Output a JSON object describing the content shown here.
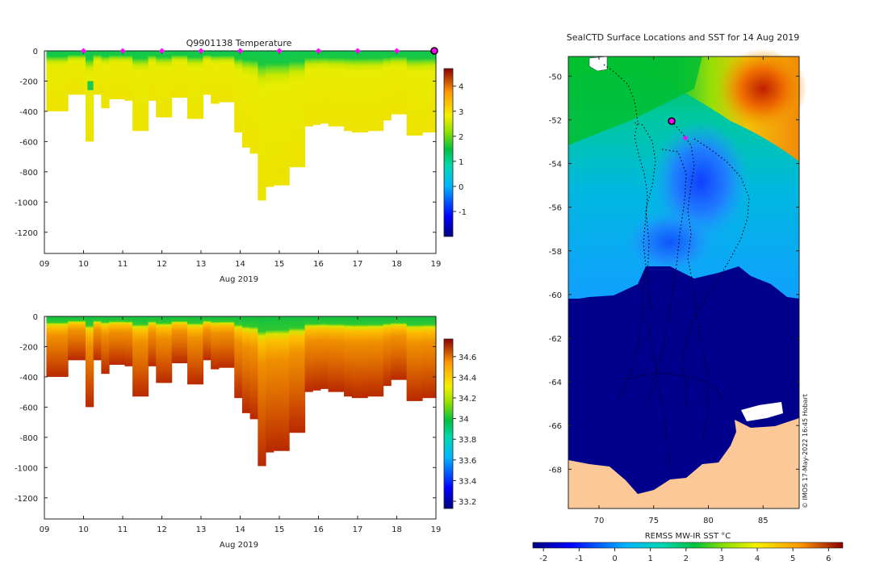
{
  "chart_data": [
    {
      "type": "heatmap",
      "name": "temperature-section",
      "title": "Q9901138  Temperature",
      "xlabel": "Aug 2019",
      "x_tick_labels": [
        "09",
        "10",
        "11",
        "12",
        "13",
        "14",
        "15",
        "16",
        "17",
        "18",
        "19"
      ],
      "xlim": [
        9,
        19
      ],
      "y_tick_labels": [
        "0",
        "-200",
        "-400",
        "-600",
        "-800",
        "-1000",
        "-1200"
      ],
      "ylim": [
        -1340,
        0
      ],
      "colorbar": {
        "ticks": [
          "4",
          "3",
          "2",
          "1",
          "0",
          "-1"
        ],
        "range": [
          -2,
          4.7
        ]
      },
      "profile_markers_day": [
        10,
        11,
        12,
        13,
        14,
        15,
        16,
        17,
        18
      ],
      "latest_marker_day": 19,
      "profiles": {
        "day": [
          9.05,
          9.35,
          9.6,
          9.8,
          10.05,
          10.25,
          10.45,
          10.65,
          10.85,
          11.05,
          11.25,
          11.45,
          11.65,
          11.85,
          12.05,
          12.25,
          12.45,
          12.65,
          12.85,
          13.05,
          13.25,
          13.45,
          13.65,
          13.85,
          14.05,
          14.25,
          14.45,
          14.65,
          14.85,
          15.05,
          15.25,
          15.45,
          15.65,
          15.85,
          16.05,
          16.25,
          16.45,
          16.65,
          16.85,
          17.05,
          17.25,
          17.45,
          17.65,
          17.85,
          18.05,
          18.25,
          18.45,
          18.65,
          18.85
        ],
        "max_depth_m": [
          400,
          400,
          290,
          290,
          600,
          290,
          380,
          320,
          320,
          330,
          530,
          530,
          330,
          440,
          440,
          310,
          310,
          450,
          450,
          290,
          350,
          340,
          340,
          540,
          640,
          680,
          990,
          900,
          890,
          890,
          770,
          770,
          500,
          490,
          480,
          500,
          500,
          530,
          540,
          540,
          530,
          530,
          460,
          420,
          420,
          560,
          560,
          540,
          540
        ]
      }
    },
    {
      "type": "heatmap",
      "name": "salinity-section",
      "title": "",
      "xlabel": "Aug 2019",
      "x_tick_labels": [
        "09",
        "10",
        "11",
        "12",
        "13",
        "14",
        "15",
        "16",
        "17",
        "18",
        "19"
      ],
      "xlim": [
        9,
        19
      ],
      "y_tick_labels": [
        "0",
        "-200",
        "-400",
        "-600",
        "-800",
        "-1000",
        "-1200"
      ],
      "ylim": [
        -1340,
        0
      ],
      "colorbar": {
        "ticks": [
          "34.6",
          "34.4",
          "34.2",
          "34",
          "33.8",
          "33.6",
          "33.4",
          "33.2"
        ],
        "range": [
          33.13,
          34.77
        ]
      },
      "profiles": {
        "same_as": "temperature-section"
      }
    },
    {
      "type": "heatmap",
      "name": "sst-map",
      "title": "SealCTD Surface Locations and SST for 14 Aug 2019",
      "x_tick_labels": [
        "70",
        "75",
        "80",
        "85"
      ],
      "xlim": [
        67.2,
        88.3
      ],
      "y_tick_labels": [
        "-50",
        "-52",
        "-54",
        "-56",
        "-58",
        "-60",
        "-62",
        "-64",
        "-66",
        "-68"
      ],
      "ylim": [
        -69.8,
        -49.1
      ],
      "colorbar_label": "REMSS MW-IR SST °C",
      "colorbar_ticks": [
        "-2",
        "-1",
        "0",
        "1",
        "2",
        "3",
        "4",
        "5",
        "6"
      ],
      "colorbar_range": [
        -2.3,
        6.4
      ],
      "credit": "© IMOS 17-May-2022 16:45 Hobart",
      "current_position": [
        76.5,
        -52.05
      ]
    }
  ],
  "colors": {
    "marker": "#ff00ff",
    "land": "#fcc898",
    "cold_water": "#00008c"
  }
}
